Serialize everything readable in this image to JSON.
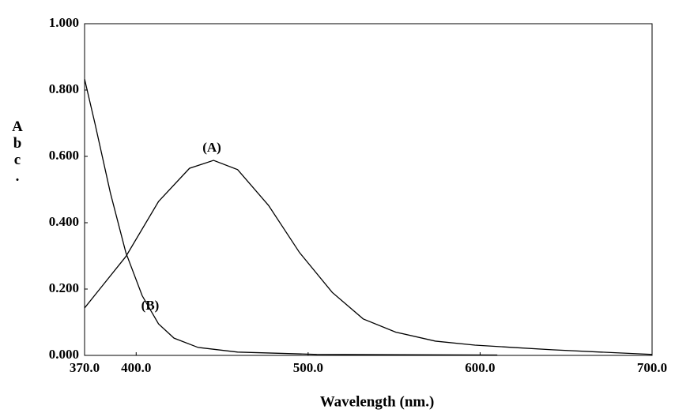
{
  "chart_data": {
    "type": "line",
    "xlabel": "Wavelength (nm.)",
    "ylabel": "Abc.",
    "annotations": [
      "(A)",
      "(B)"
    ],
    "xlim": [
      370,
      700
    ],
    "ylim": [
      0,
      1
    ],
    "xticks": [
      {
        "value": 370,
        "label": "370.0"
      },
      {
        "value": 400,
        "label": "400.0"
      },
      {
        "value": 500,
        "label": "500.0"
      },
      {
        "value": 600,
        "label": "600.0"
      },
      {
        "value": 700,
        "label": "700.0"
      }
    ],
    "yticks": [
      {
        "value": 0,
        "label": "0.000"
      },
      {
        "value": 0.2,
        "label": "0.200"
      },
      {
        "value": 0.4,
        "label": "0.400"
      },
      {
        "value": 0.6,
        "label": "0.600"
      },
      {
        "value": 0.8,
        "label": "0.800"
      },
      {
        "value": 1,
        "label": "1.000"
      }
    ],
    "series": [
      {
        "name": "(A)",
        "color": "#000000",
        "x": [
          370,
          394,
          413,
          431,
          445,
          459,
          477,
          495,
          514,
          532,
          551,
          574,
          597,
          619,
          642,
          670,
          700
        ],
        "values": [
          0.143,
          0.298,
          0.464,
          0.564,
          0.588,
          0.56,
          0.452,
          0.31,
          0.19,
          0.11,
          0.07,
          0.043,
          0.031,
          0.024,
          0.017,
          0.01,
          0.003
        ]
      },
      {
        "name": "(B)",
        "color": "#000000",
        "x": [
          370,
          376,
          385,
          394,
          403.5,
          413,
          422,
          436,
          459,
          505,
          610
        ],
        "values": [
          0.833,
          0.7,
          0.49,
          0.31,
          0.18,
          0.095,
          0.052,
          0.024,
          0.01,
          0.003,
          0.001
        ]
      }
    ]
  }
}
